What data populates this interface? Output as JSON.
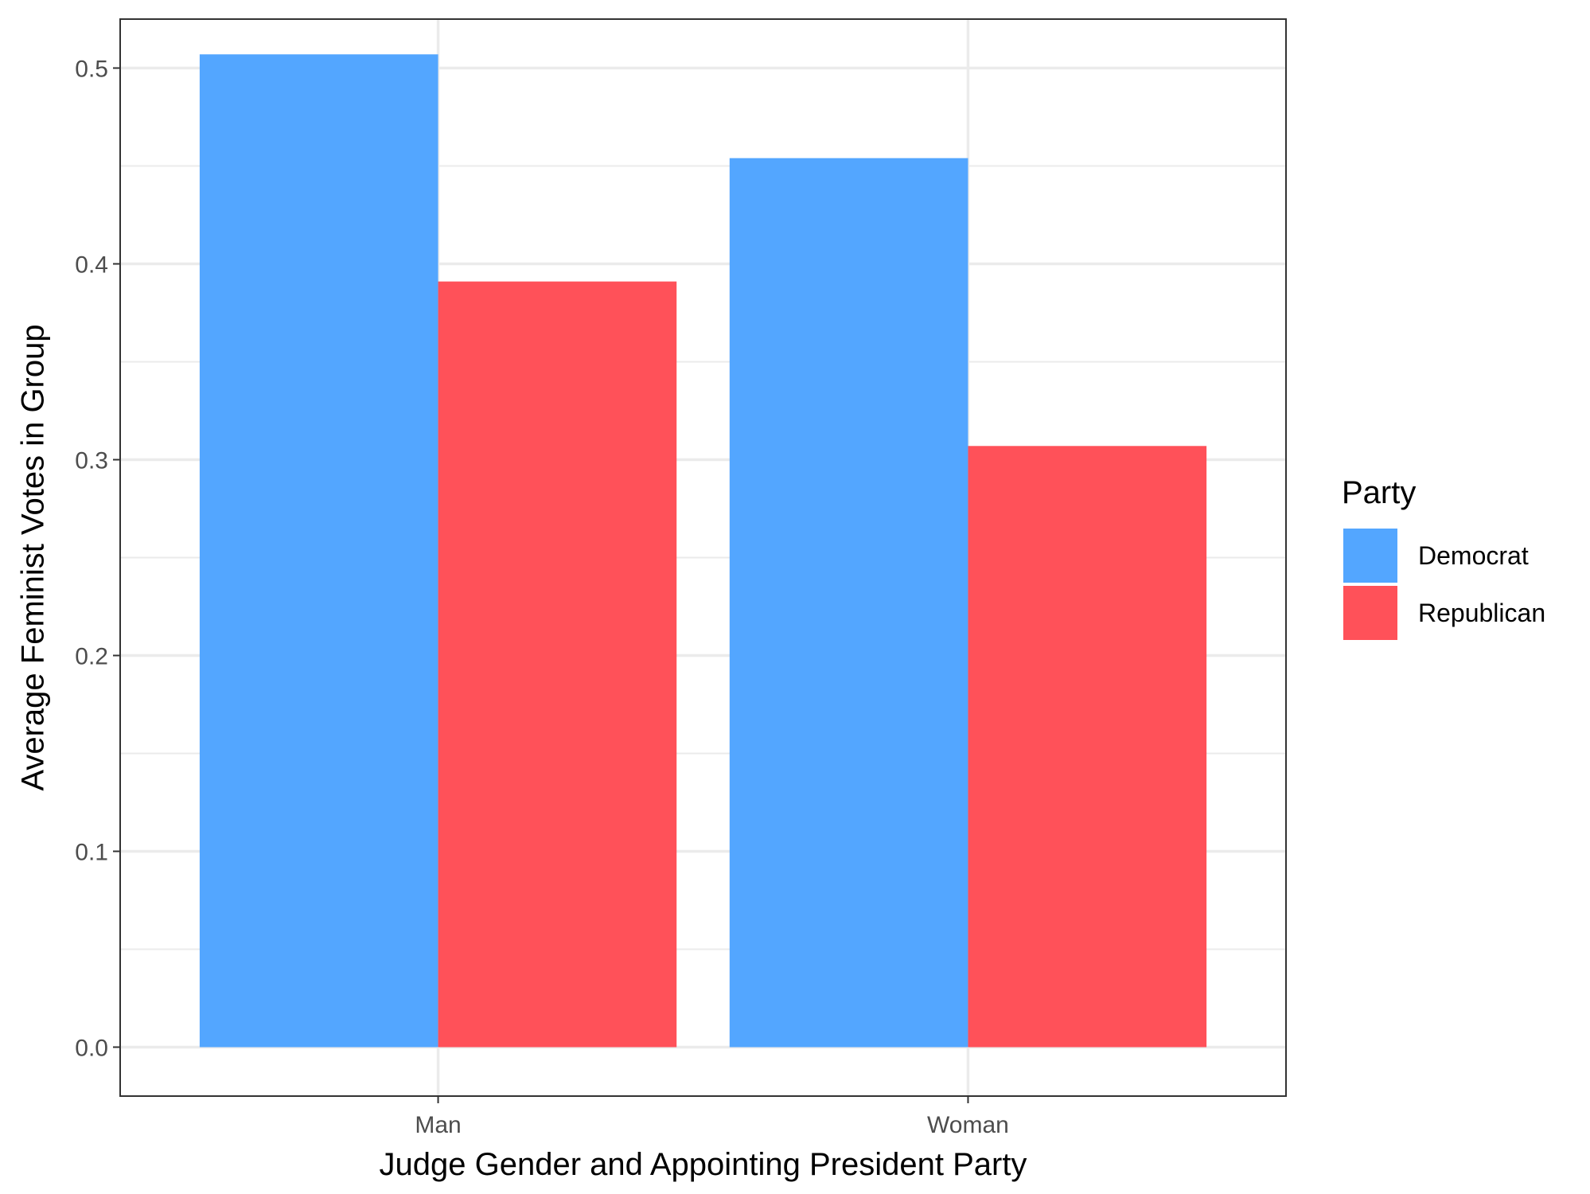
{
  "chart_data": {
    "type": "bar",
    "title": "",
    "xlabel": "Judge Gender and Appointing President Party",
    "ylabel": "Average Feminist Votes in Group",
    "categories": [
      "Man",
      "Woman"
    ],
    "series": [
      {
        "name": "Democrat",
        "values": [
          0.507,
          0.454
        ],
        "color": "#53A6FF"
      },
      {
        "name": "Republican",
        "values": [
          0.391,
          0.307
        ],
        "color": "#FF5159"
      }
    ],
    "ylim": [
      -0.025,
      0.525
    ],
    "y_ticks": [
      0.0,
      0.1,
      0.2,
      0.3,
      0.4,
      0.5
    ],
    "y_tick_labels": [
      "0.0",
      "0.1",
      "0.2",
      "0.3",
      "0.4",
      "0.5"
    ],
    "grid": true,
    "legend": {
      "title": "Party",
      "placement": "right"
    }
  }
}
